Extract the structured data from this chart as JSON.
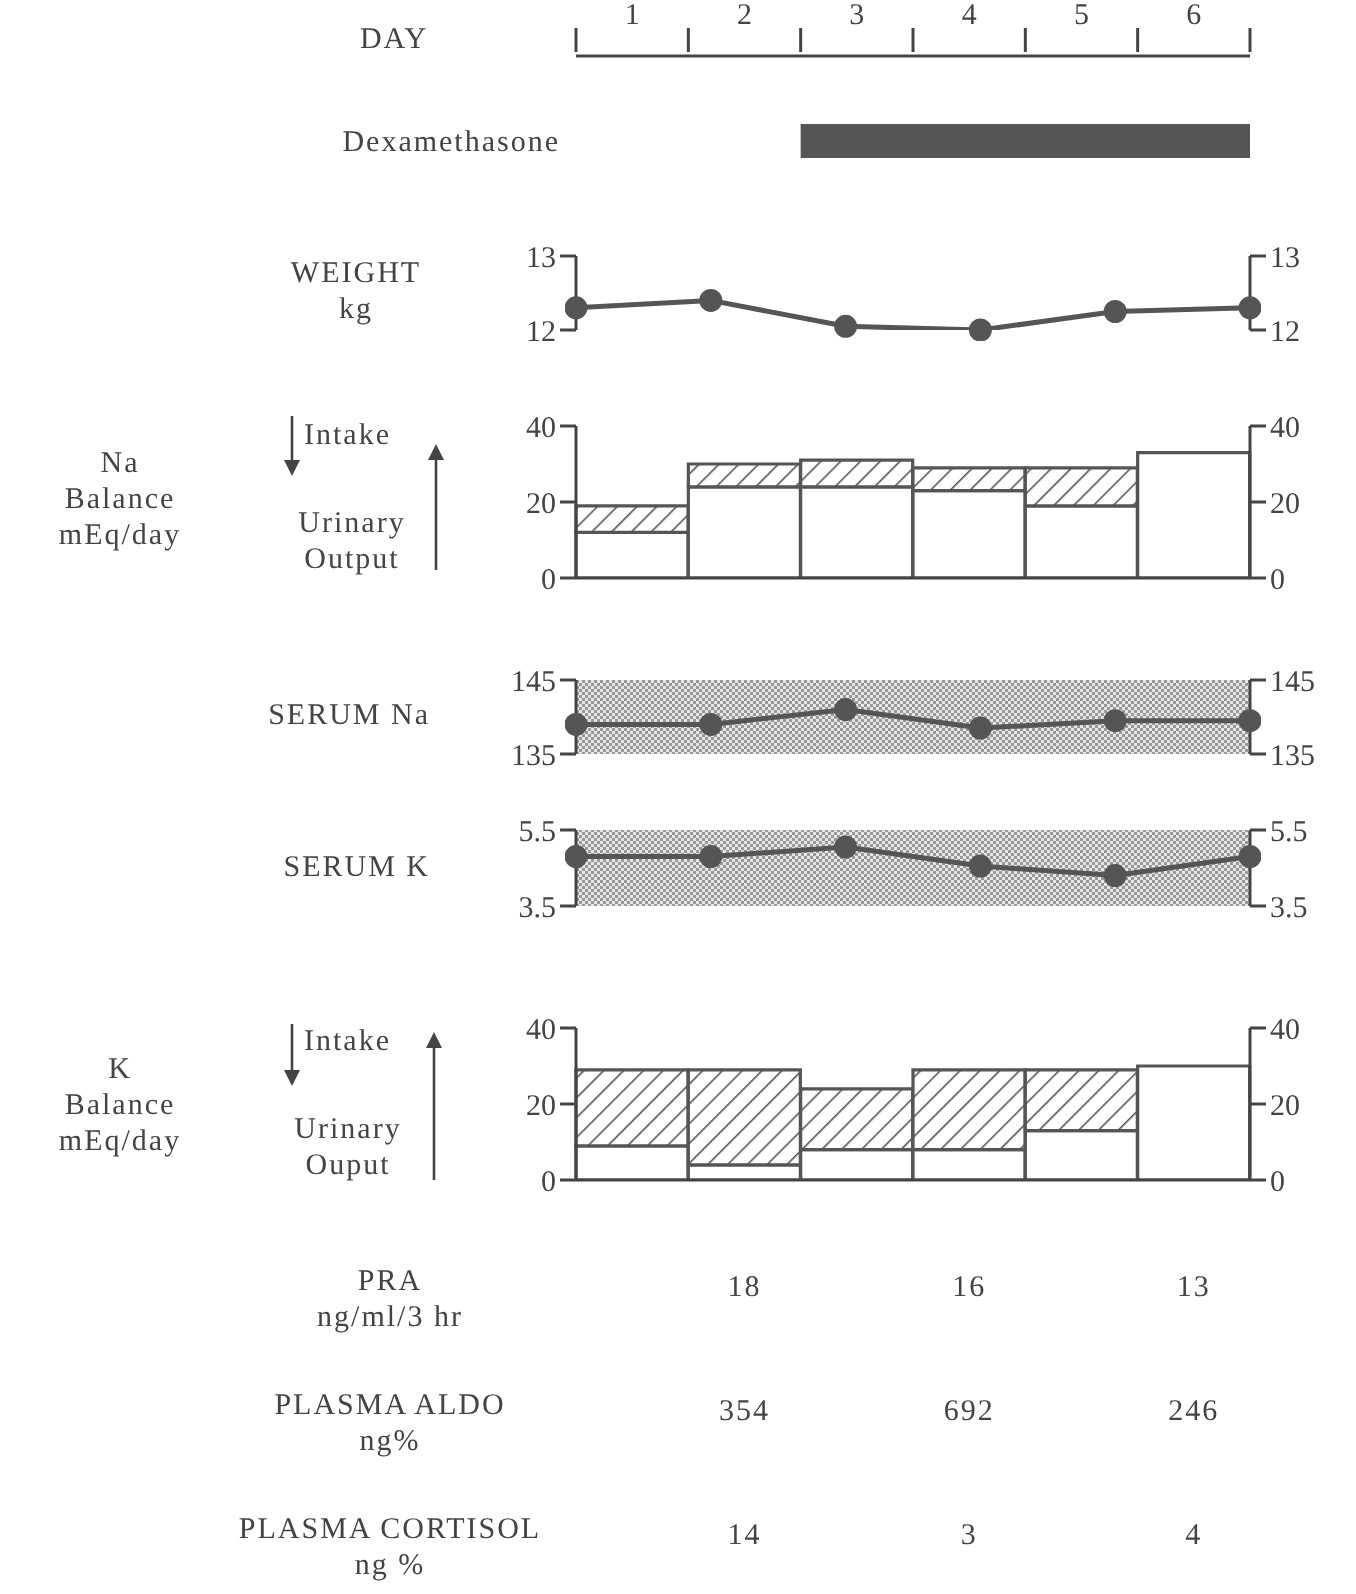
{
  "chart_data": [
    {
      "type": "bar",
      "orientation": "horizontal",
      "xlabel": "DAY",
      "categories": [
        "Dexamethasone"
      ],
      "base": [
        2.5
      ],
      "values": [
        4
      ],
      "color": "#555555",
      "xlim": [
        0.5,
        6.5
      ],
      "xticks": [
        {
          "value": 0.5,
          "label": null
        },
        1,
        {
          "value": 1.5,
          "label": null
        },
        2,
        {
          "value": 2.5,
          "label": null
        },
        3,
        {
          "value": 3.5,
          "label": null
        },
        4,
        {
          "value": 4.5,
          "label": null
        },
        5,
        {
          "value": 5.5,
          "label": null
        },
        6,
        {
          "value": 6.5,
          "label": null
        }
      ]
    },
    {
      "type": "line",
      "ylabel": "WEIGHT\nkg",
      "categories": [
        null,
        null,
        null,
        null,
        null,
        null
      ],
      "tick_labels": "y",
      "values": [
        12.3,
        12.4,
        12.05,
        12.0,
        12.25,
        12.3
      ],
      "color": "#555555",
      "marker": "circle",
      "line_style": "solid",
      "ylim": [
        12,
        13
      ],
      "yticks": [
        12,
        13
      ],
      "y2lim": [
        12,
        13
      ],
      "y2ticks": [
        12,
        13
      ]
    },
    {
      "type": "bar",
      "stacked": true,
      "ylabel": "Na\nBalance\nmEq/day",
      "annotations": [
        "Intake",
        "Urinary\nOutput"
      ],
      "categories": [
        null,
        null,
        null,
        null,
        null,
        null
      ],
      "tick_labels": "y",
      "series": [
        {
          "color": "#ffffff",
          "values": [
            12,
            24,
            24,
            23,
            19,
            33
          ]
        },
        {
          "color": "#555555",
          "values": [
            7,
            6,
            7,
            6,
            10,
            0
          ]
        }
      ],
      "ylim": [
        0,
        40
      ],
      "yticks": [
        0,
        20,
        40
      ],
      "y2lim": [
        0,
        40
      ],
      "y2ticks": [
        0,
        20,
        40
      ]
    },
    {
      "type": "line",
      "ylabel": "SERUM Na",
      "categories": [
        null,
        null,
        null,
        null,
        null,
        null
      ],
      "tick_labels": "y",
      "values": [
        139,
        139,
        141,
        138.5,
        139.5,
        139.5
      ],
      "color": "#555555",
      "marker": "circle",
      "line_style": "solid",
      "bands": [
        {
          "axis": "y",
          "from": 135,
          "to": 145,
          "color": "#999999"
        }
      ],
      "ylim": [
        135,
        145
      ],
      "yticks": [
        135,
        145
      ],
      "y2lim": [
        135,
        145
      ],
      "y2ticks": [
        135,
        145
      ]
    },
    {
      "type": "line",
      "ylabel": "SERUM K",
      "categories": [
        null,
        null,
        null,
        null,
        null,
        null
      ],
      "tick_labels": "y",
      "values": [
        4.8,
        4.8,
        5.05,
        4.55,
        4.3,
        4.8
      ],
      "color": "#555555",
      "marker": "circle",
      "line_style": "solid",
      "bands": [
        {
          "axis": "y",
          "from": 3.5,
          "to": 5.5,
          "color": "#999999"
        }
      ],
      "ylim": [
        3.5,
        5.5
      ],
      "yticks": [
        3.5,
        5.5
      ],
      "y2lim": [
        3.5,
        5.5
      ],
      "y2ticks": [
        3.5,
        5.5
      ]
    },
    {
      "type": "bar",
      "stacked": true,
      "ylabel": "K\nBalance\nmEq/day",
      "annotations": [
        "Intake",
        "Urinary\nOuput"
      ],
      "categories": [
        null,
        null,
        null,
        null,
        null,
        null
      ],
      "tick_labels": "y",
      "series": [
        {
          "color": "#ffffff",
          "values": [
            9,
            4,
            8,
            8,
            13,
            30
          ]
        },
        {
          "color": "#555555",
          "values": [
            20,
            25,
            16,
            21,
            16,
            0
          ]
        }
      ],
      "ylim": [
        0,
        40
      ],
      "yticks": [
        0,
        20,
        40
      ],
      "y2lim": [
        0,
        40
      ],
      "y2ticks": [
        0,
        20,
        40
      ]
    },
    {
      "type": "other",
      "categories": [
        null,
        null,
        null,
        null,
        null,
        null
      ],
      "y_categories": [
        "PRA\nng/ml/3 hr",
        "PLASMA ALDO\nng%",
        "PLASMA CORTISOL\nng %"
      ],
      "cells": [
        [
          null,
          "18",
          null,
          "16",
          null,
          "13"
        ],
        [
          null,
          "354",
          null,
          "692",
          null,
          "246"
        ],
        [
          null,
          "14",
          null,
          "3",
          null,
          "4"
        ]
      ]
    }
  ]
}
